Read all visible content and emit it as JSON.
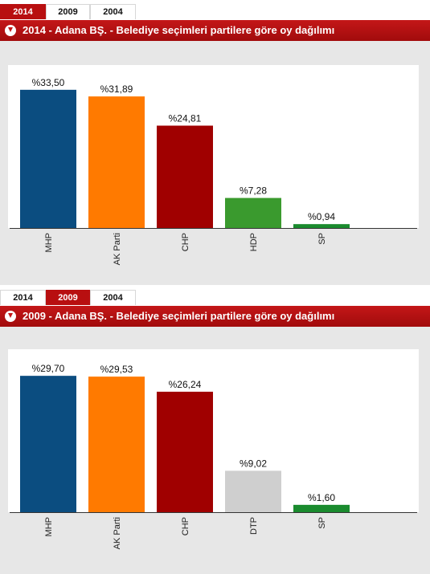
{
  "tabs": [
    "2014",
    "2009",
    "2004"
  ],
  "panels": [
    {
      "active_tab": 0,
      "title": "2014 - Adana BŞ. - Belediye seçimleri partilere göre oy dağılımı",
      "chart": {
        "type": "bar",
        "categories": [
          "MHP",
          "AK Parti",
          "CHP",
          "HDP",
          "SP"
        ],
        "values": [
          33.5,
          31.89,
          24.81,
          7.28,
          0.94
        ],
        "value_labels": [
          "%33,50",
          "%31,89",
          "%24,81",
          "%7,28",
          "%0,94"
        ],
        "colors": [
          "#0b4d80",
          "#ff7a00",
          "#a00000",
          "#3a9a2e",
          "#1a8b2e"
        ],
        "ylim": [
          0,
          36
        ]
      }
    },
    {
      "active_tab": 1,
      "title": "2009 - Adana BŞ. - Belediye seçimleri partilere göre oy dağılımı",
      "chart": {
        "type": "bar",
        "categories": [
          "MHP",
          "AK Parti",
          "CHP",
          "DTP",
          "SP"
        ],
        "values": [
          29.7,
          29.53,
          26.24,
          9.02,
          1.6
        ],
        "value_labels": [
          "%29,70",
          "%29,53",
          "%26,24",
          "%9,02",
          "%1,60"
        ],
        "colors": [
          "#0b4d80",
          "#ff7a00",
          "#a00000",
          "#cfcfcf",
          "#1a8b2e"
        ],
        "ylim": [
          0,
          32
        ]
      }
    }
  ],
  "chart_data": [
    {
      "type": "bar",
      "title": "2014 - Adana BŞ. - Belediye seçimleri partilere göre oy dağılımı",
      "categories": [
        "MHP",
        "AK Parti",
        "CHP",
        "HDP",
        "SP"
      ],
      "values": [
        33.5,
        31.89,
        24.81,
        7.28,
        0.94
      ],
      "xlabel": "",
      "ylabel": ""
    },
    {
      "type": "bar",
      "title": "2009 - Adana BŞ. - Belediye seçimleri partilere göre oy dağılımı",
      "categories": [
        "MHP",
        "AK Parti",
        "CHP",
        "DTP",
        "SP"
      ],
      "values": [
        29.7,
        29.53,
        26.24,
        9.02,
        1.6
      ],
      "xlabel": "",
      "ylabel": ""
    }
  ]
}
